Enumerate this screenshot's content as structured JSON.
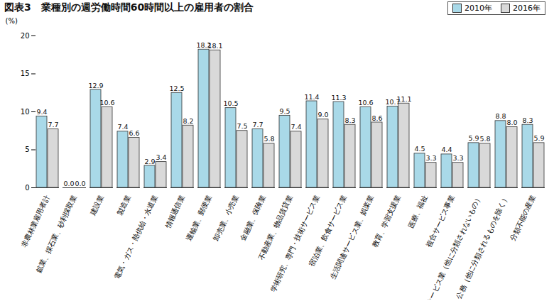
{
  "chart_data": {
    "type": "bar",
    "title": "図表3　業種別の週労働時間60時間以上の雇用者の割合",
    "y_label": "(%)",
    "categories": [
      "非農林業雇用者計",
      "鉱業、採石業、砂利採取業",
      "建設業",
      "製造業",
      "電気・ガス・熱供給・水道業",
      "情報通信業",
      "運輸業、郵便業",
      "卸売業、小売業",
      "金融業、保険業",
      "不動産業、物品賃貸業",
      "学術研究、専門・技術サービス業",
      "宿泊業、飲食サービス業",
      "生活関連サービス業、娯楽業",
      "教育、学習支援業",
      "医療、福祉",
      "複合サービス事業",
      "サービス業（他に分類されないもの）",
      "公務（他に分類されるものを除く）",
      "分類不能の産業"
    ],
    "series": [
      {
        "name": "2010年",
        "color": "#a9d9e8",
        "values": [
          9.4,
          0.0,
          12.9,
          7.4,
          2.9,
          12.5,
          18.2,
          10.5,
          7.7,
          9.5,
          11.4,
          11.3,
          10.6,
          10.7,
          4.5,
          4.4,
          5.9,
          8.8,
          8.3
        ],
        "value_labels": [
          "9.4",
          "0.0",
          "12.9",
          "7.4",
          "2.9",
          "12.5",
          "18.2",
          "10.5",
          "7.7",
          "9.5",
          "11.4",
          "11.3",
          "10.6",
          "10.7",
          "4.5",
          "4.4",
          "5.9",
          "8.8",
          "8.3"
        ]
      },
      {
        "name": "2016年",
        "color": "#d9d9d9",
        "values": [
          7.7,
          0.0,
          10.6,
          6.6,
          3.4,
          8.2,
          18.1,
          7.5,
          5.8,
          7.4,
          9.0,
          8.3,
          8.6,
          11.1,
          3.3,
          3.3,
          5.8,
          8.0,
          5.9
        ],
        "value_labels": [
          "7.7",
          "0.0",
          "10.6",
          "6.6",
          "3.4",
          "8.2",
          "18.1",
          "7.5",
          "5.8",
          "7.4",
          "9.0",
          "8.3",
          "8.6",
          "11.1",
          "3.3",
          "3.3",
          "5.8",
          "8.0",
          "5.9"
        ]
      }
    ],
    "ylim": [
      0,
      20
    ],
    "yticks": [
      0,
      5,
      10,
      15,
      20
    ],
    "data_labels": true,
    "legend": "top-right",
    "grid": false
  }
}
